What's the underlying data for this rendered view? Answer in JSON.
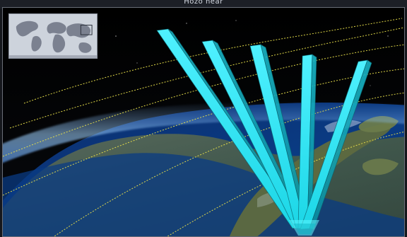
{
  "window": {
    "title": "Hozo near"
  },
  "overview_map": {
    "label": "",
    "icon": "world-map-icon"
  },
  "scene": {
    "visible_text": "",
    "beam_count": 5
  }
}
